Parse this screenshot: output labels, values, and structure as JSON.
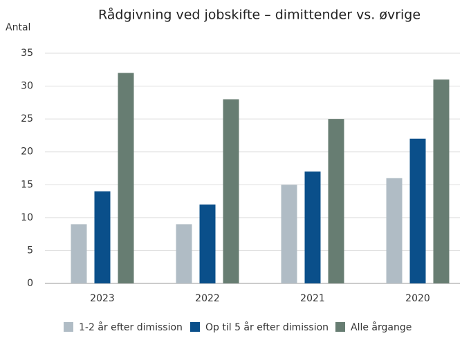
{
  "chart_data": {
    "type": "bar",
    "title": "Rådgivning ved jobskifte – dimittender vs. øvrige",
    "y_label": "Antal",
    "categories": [
      "2023",
      "2022",
      "2021",
      "2020"
    ],
    "series": [
      {
        "name": "1-2 år efter dimission",
        "color": "#b0bcc5",
        "values": [
          9,
          9,
          15,
          16
        ]
      },
      {
        "name": "Op til 5 år efter dimission",
        "color": "#0a4f8a",
        "values": [
          14,
          12,
          17,
          22
        ]
      },
      {
        "name": "Alle årgange",
        "color": "#677d72",
        "values": [
          32,
          28,
          25,
          31
        ]
      }
    ],
    "ylim": [
      0,
      35
    ],
    "yticks": [
      0,
      5,
      10,
      15,
      20,
      25,
      30,
      35
    ],
    "grid": true,
    "legend": "bottom"
  }
}
